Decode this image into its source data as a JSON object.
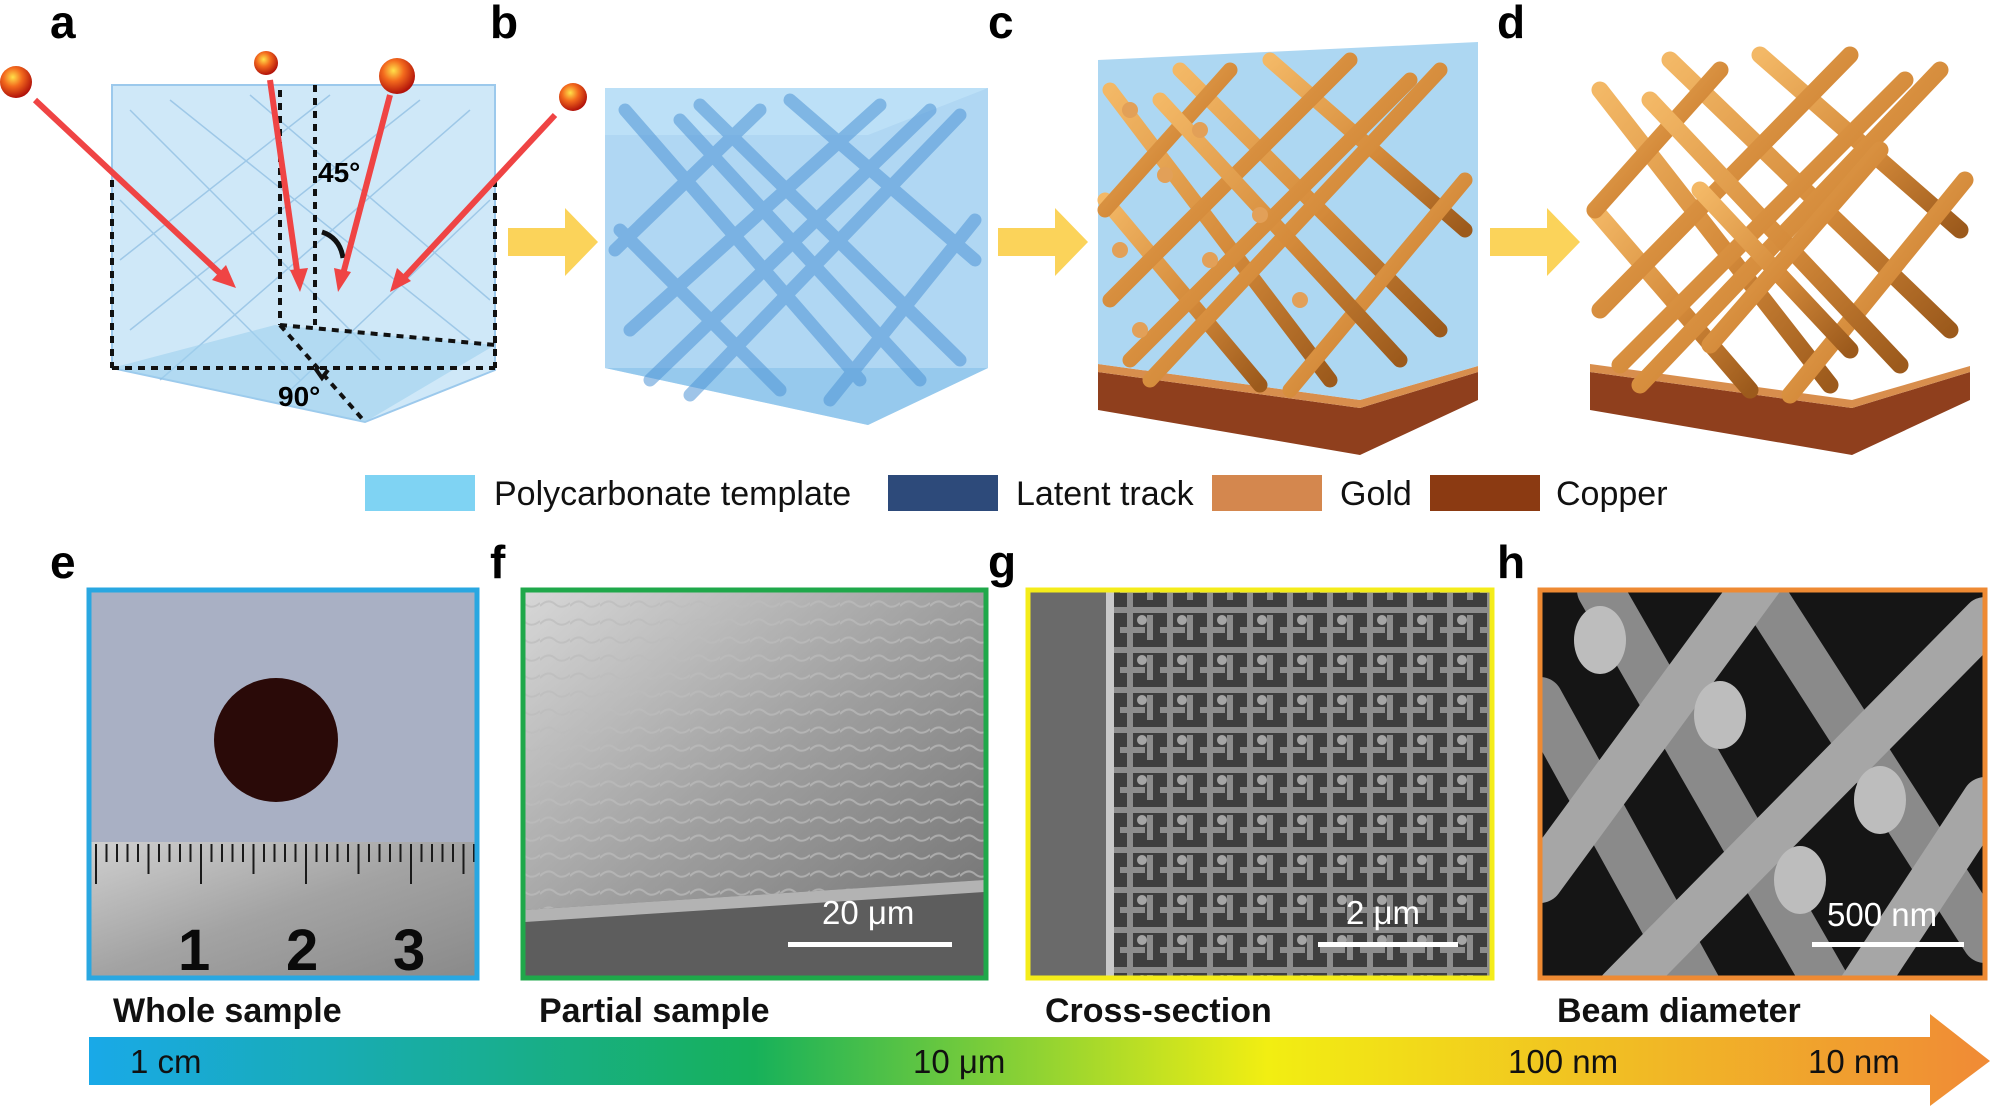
{
  "panels": {
    "a": "a",
    "b": "b",
    "c": "c",
    "d": "d",
    "e": "e",
    "f": "f",
    "g": "g",
    "h": "h"
  },
  "angles": {
    "top": "45°",
    "bottom": "90°"
  },
  "legend": [
    {
      "label": "Polycarbonate template",
      "color": "#7fd3f3"
    },
    {
      "label": "Latent track",
      "color": "#2d4a7a"
    },
    {
      "label": "Gold",
      "color": "#d4874e"
    },
    {
      "label": "Copper",
      "color": "#8b3a12"
    }
  ],
  "ruler_numbers": [
    "1",
    "2",
    "3"
  ],
  "scale_bars": {
    "f": "20 μm",
    "g": "2 μm",
    "h": "500 nm"
  },
  "captions": {
    "e": "Whole sample",
    "f": "Partial sample",
    "g": "Cross-section",
    "h": "Beam diameter"
  },
  "frame_colors": {
    "e": "#29a7e1",
    "f": "#1fa84a",
    "g": "#f4ec1a",
    "h": "#ee8a33"
  },
  "scale_axis": {
    "ticks": [
      "1 cm",
      "10 μm",
      "100 nm",
      "10 nm"
    ],
    "gradient": [
      "#19a9e8",
      "#17b15a",
      "#f2ee12",
      "#f08a36"
    ]
  }
}
